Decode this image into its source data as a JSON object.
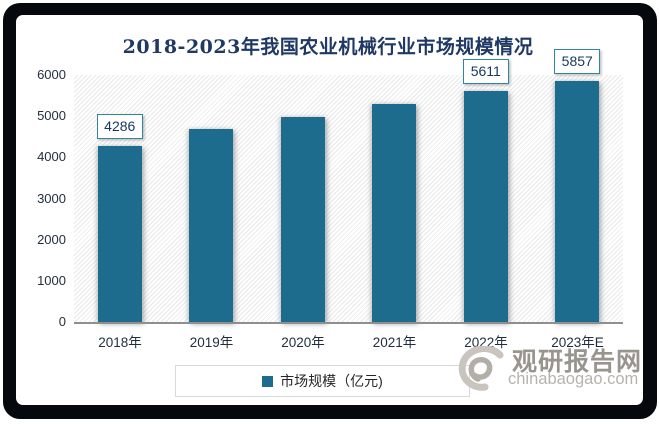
{
  "chart_data": {
    "type": "bar",
    "title": "2018-2023年我国农业机械行业市场规模情况",
    "categories": [
      "2018年",
      "2019年",
      "2020年",
      "2021年",
      "2022年",
      "2023年E"
    ],
    "series": [
      {
        "name": "市场规模（亿元)",
        "values": [
          4286,
          4700,
          4970,
          5300,
          5611,
          5857
        ]
      }
    ],
    "value_labels": [
      {
        "index": 0,
        "text": "4286"
      },
      {
        "index": 4,
        "text": "5611"
      },
      {
        "index": 5,
        "text": "5857"
      }
    ],
    "ylim": [
      0,
      6000
    ],
    "ytick_step": 1000,
    "yticks": [
      "0",
      "1000",
      "2000",
      "3000",
      "4000",
      "5000",
      "6000"
    ],
    "grid": false,
    "legend_position": "bottom",
    "plot_background": "light-diagonal-hatch"
  },
  "legend": {
    "label": "市场规模（亿元)"
  },
  "watermark": {
    "logo": "swirl-logo",
    "name": "观研报告网",
    "domain": "chinabaogao.com"
  },
  "colors": {
    "bar": "#1E6C8D",
    "title": "#1F3864",
    "label_box_border": "#31859C",
    "label_text": "#17375E",
    "axis_text": "#1F2D3D",
    "axis_line": "#8F8F8F",
    "legend_border": "#D9D9D9",
    "frame": "#05080C",
    "watermark_name": "#98948E",
    "watermark_domain": "#B7B3AC"
  }
}
